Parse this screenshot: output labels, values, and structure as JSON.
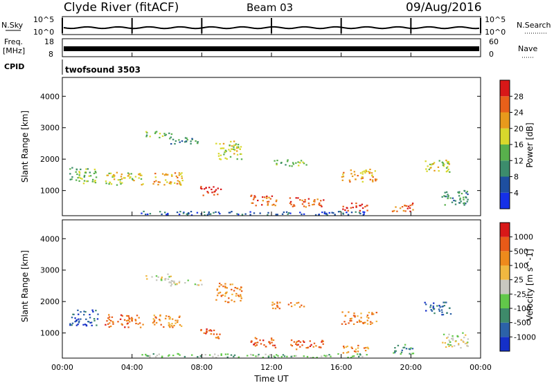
{
  "header": {
    "station": "Clyde River (fitACF)",
    "beam": "Beam 03",
    "date": "09/Aug/2016"
  },
  "noise_panel": {
    "left_label": "N.Sky",
    "left_ticks": [
      "10^5",
      "10^0"
    ],
    "right_label": "N.Search",
    "right_ticks": [
      "10^5",
      "10^0"
    ]
  },
  "freq_panel": {
    "left_label_1": "Freq.",
    "left_label_2": "[MHz]",
    "left_ticks": [
      "18",
      "8"
    ],
    "right_label": "Nave",
    "right_ticks": [
      "60",
      "0"
    ]
  },
  "cpid_panel": {
    "label": "CPID",
    "program": "twofsound 3503"
  },
  "chart_data": [
    {
      "type": "heatmap",
      "name": "power",
      "ylabel": "Slant Range [km]",
      "yticks": [
        1000,
        2000,
        3000,
        4000
      ],
      "ylim": [
        200,
        4600
      ],
      "xlim": [
        0,
        24
      ],
      "colorbar": {
        "label": "Power [dB]",
        "ticks": [
          "4",
          "8",
          "12",
          "16",
          "20",
          "24",
          "28"
        ],
        "colors": [
          "#1530e8",
          "#1e4fa0",
          "#3c8c6c",
          "#58b04c",
          "#d8d82c",
          "#e89a1c",
          "#e8601a",
          "#d81818"
        ]
      }
    },
    {
      "type": "heatmap",
      "name": "velocity",
      "ylabel": "Slant Range [km]",
      "yticks": [
        1000,
        2000,
        3000,
        4000
      ],
      "ylim": [
        200,
        4600
      ],
      "xlim": [
        0,
        24
      ],
      "xlabel": "Time UT",
      "xticks": [
        "00:00",
        "04:00",
        "08:00",
        "12:00",
        "16:00",
        "20:00",
        "00:00"
      ],
      "colorbar": {
        "label": "Velocity [m s^-1]",
        "ticks": [
          "1000",
          "500",
          "100",
          "25",
          "-25",
          "-100",
          "-500",
          "-1000"
        ],
        "colors": [
          "#1530c8",
          "#2c62a8",
          "#3e8a6a",
          "#62c84a",
          "#c8c8c0",
          "#f0b840",
          "#ee8a1c",
          "#e85a18",
          "#d81818"
        ]
      }
    }
  ]
}
